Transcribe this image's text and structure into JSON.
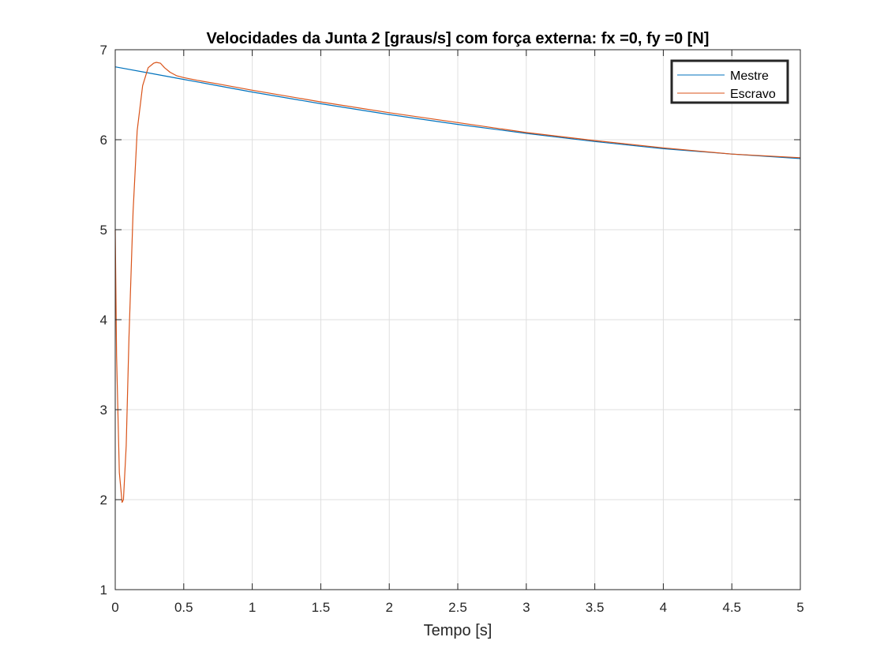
{
  "chart_data": {
    "type": "line",
    "title": "Velocidades da Junta 2 [graus/s] com força externa: fx =0, fy =0 [N]",
    "xlabel": "Tempo [s]",
    "ylabel": "",
    "xlim": [
      0,
      5
    ],
    "ylim": [
      1,
      7
    ],
    "xticks": [
      0,
      0.5,
      1,
      1.5,
      2,
      2.5,
      3,
      3.5,
      4,
      4.5,
      5
    ],
    "xtick_labels": [
      "0",
      "0.5",
      "1",
      "1.5",
      "2",
      "2.5",
      "3",
      "3.5",
      "4",
      "4.5",
      "5"
    ],
    "yticks": [
      1,
      2,
      3,
      4,
      5,
      6,
      7
    ],
    "ytick_labels": [
      "1",
      "2",
      "3",
      "4",
      "5",
      "6",
      "7"
    ],
    "grid": true,
    "legend_position": "top-right",
    "series": [
      {
        "name": "Mestre",
        "color": "#0072BD",
        "x": [
          0,
          0.25,
          0.5,
          0.75,
          1,
          1.5,
          2,
          2.5,
          3,
          3.5,
          4,
          4.5,
          5
        ],
        "y": [
          6.81,
          6.74,
          6.67,
          6.6,
          6.53,
          6.4,
          6.28,
          6.17,
          6.07,
          5.98,
          5.9,
          5.84,
          5.79
        ]
      },
      {
        "name": "Escravo",
        "color": "#D95319",
        "x": [
          0,
          0.01,
          0.03,
          0.05,
          0.06,
          0.08,
          0.1,
          0.13,
          0.16,
          0.2,
          0.24,
          0.28,
          0.3,
          0.33,
          0.36,
          0.4,
          0.45,
          0.5,
          0.6,
          0.75,
          1,
          1.5,
          2,
          2.5,
          3,
          3.5,
          4,
          4.5,
          5
        ],
        "y": [
          5.0,
          3.6,
          2.3,
          1.97,
          2.0,
          2.6,
          3.8,
          5.2,
          6.1,
          6.6,
          6.8,
          6.85,
          6.86,
          6.85,
          6.8,
          6.75,
          6.71,
          6.69,
          6.66,
          6.62,
          6.55,
          6.42,
          6.3,
          6.19,
          6.08,
          5.99,
          5.91,
          5.84,
          5.8
        ]
      }
    ]
  }
}
